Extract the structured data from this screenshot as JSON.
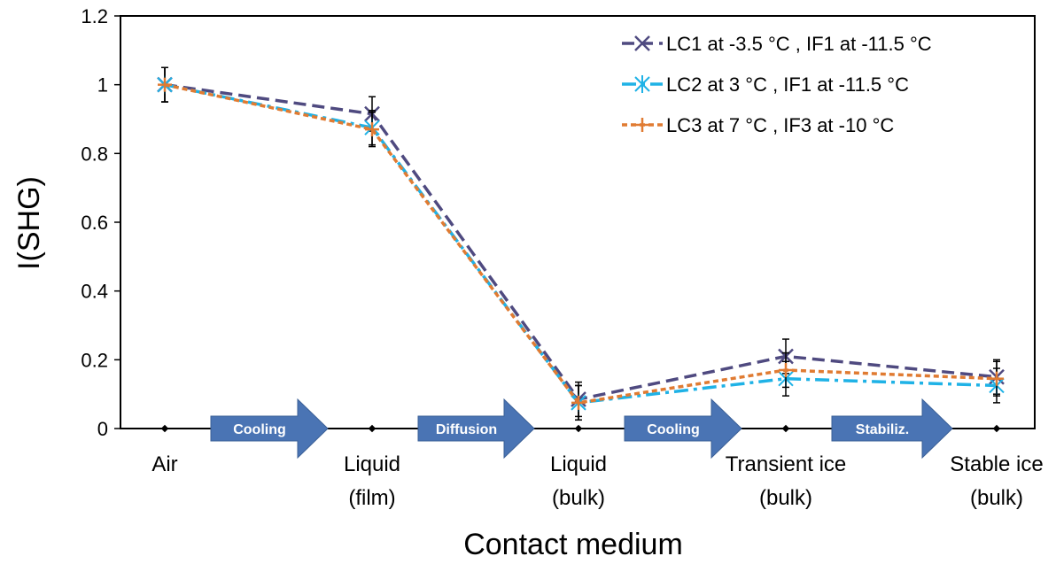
{
  "chart_data": {
    "type": "line",
    "title": "",
    "xlabel": "Contact medium",
    "ylabel": "I(SHG)",
    "ylim": [
      0,
      1.2
    ],
    "yticks": [
      "0",
      "0.2",
      "0.4",
      "0.6",
      "0.8",
      "1",
      "1.2"
    ],
    "grid": false,
    "legend_position": "top-right",
    "categories": [
      [
        "Air"
      ],
      [
        "Liquid",
        "(film)"
      ],
      [
        "Liquid",
        "(bulk)"
      ],
      [
        "Transient ice",
        "(bulk)"
      ],
      [
        "Stable ice",
        "(bulk)"
      ]
    ],
    "series": [
      {
        "name": "LC1 at  -3.5 °C , IF1 at -11.5 °C",
        "color": "#4f4a80",
        "marker": "x",
        "dash": "dash",
        "values": [
          1.0,
          0.915,
          0.085,
          0.21,
          0.15
        ],
        "errors": [
          0.05,
          0.05,
          0.05,
          0.05,
          0.05
        ]
      },
      {
        "name": "LC2 at  3 °C , IF1 at -11.5 °C",
        "color": "#1fb2e6",
        "marker": "asterisk",
        "dash": "dashdot",
        "values": [
          1.0,
          0.875,
          0.075,
          0.145,
          0.125
        ],
        "errors": [
          0.05,
          0.05,
          0.05,
          0.05,
          0.05
        ]
      },
      {
        "name": "LC3 at  7 °C , IF3 at -10 °C",
        "color": "#e07b32",
        "marker": "plus",
        "dash": "shortdash",
        "values": [
          1.0,
          0.87,
          0.075,
          0.17,
          0.145
        ],
        "errors": [
          0.05,
          0.05,
          0.05,
          0.05,
          0.05
        ]
      }
    ],
    "annotations": [
      {
        "label": "Cooling",
        "between": [
          0,
          1
        ]
      },
      {
        "label": "Diffusion",
        "between": [
          1,
          2
        ]
      },
      {
        "label": "Cooling",
        "between": [
          2,
          3
        ]
      },
      {
        "label": "Stabiliz.",
        "between": [
          3,
          4
        ]
      }
    ],
    "zero_markers": true
  }
}
